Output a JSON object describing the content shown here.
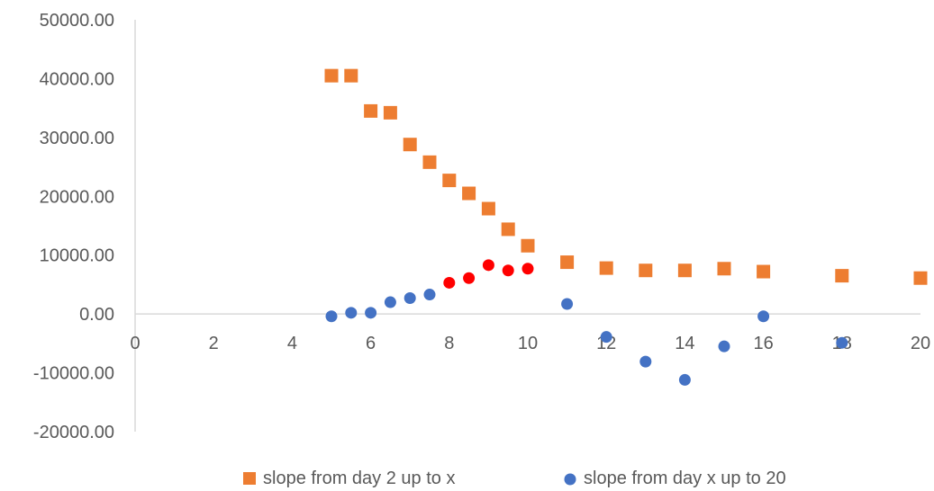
{
  "chart_data": {
    "type": "scatter",
    "title": "",
    "xlabel": "",
    "ylabel": "",
    "xlim": [
      0,
      20
    ],
    "ylim": [
      -20000,
      50000
    ],
    "x_ticks": [
      0,
      2,
      4,
      6,
      8,
      10,
      12,
      14,
      16,
      18,
      20
    ],
    "y_ticks": [
      50000,
      40000,
      30000,
      20000,
      10000,
      0,
      -10000,
      -20000
    ],
    "x_tick_labels": [
      "0",
      "2",
      "4",
      "6",
      "8",
      "10",
      "12",
      "14",
      "16",
      "18",
      "20"
    ],
    "y_tick_labels": [
      "50000.00",
      "40000.00",
      "30000.00",
      "20000.00",
      "10000.00",
      "0.00",
      "-10000.00",
      "-20000.00"
    ],
    "grid": false,
    "legend_position": "bottom",
    "series": [
      {
        "name": "slope from day 2 up to x",
        "marker": "square",
        "color": "#ED7D31",
        "points": [
          {
            "x": 5,
            "y": 40500
          },
          {
            "x": 5.5,
            "y": 40500
          },
          {
            "x": 6,
            "y": 34500
          },
          {
            "x": 6.5,
            "y": 34200
          },
          {
            "x": 7,
            "y": 28800
          },
          {
            "x": 7.5,
            "y": 25800
          },
          {
            "x": 8,
            "y": 22700
          },
          {
            "x": 8.5,
            "y": 20500
          },
          {
            "x": 9,
            "y": 17900
          },
          {
            "x": 9.5,
            "y": 14400
          },
          {
            "x": 10,
            "y": 11600
          },
          {
            "x": 11,
            "y": 8800
          },
          {
            "x": 12,
            "y": 7800
          },
          {
            "x": 13,
            "y": 7400
          },
          {
            "x": 14,
            "y": 7400
          },
          {
            "x": 15,
            "y": 7700
          },
          {
            "x": 16,
            "y": 7200
          },
          {
            "x": 18,
            "y": 6500
          },
          {
            "x": 20,
            "y": 6100
          }
        ]
      },
      {
        "name": "slope from day x up to 20",
        "marker": "circle",
        "color": "#4472C4",
        "highlight_color": "#FF0000",
        "points": [
          {
            "x": 5,
            "y": -400
          },
          {
            "x": 5.5,
            "y": 200
          },
          {
            "x": 6,
            "y": 200
          },
          {
            "x": 6.5,
            "y": 2000
          },
          {
            "x": 7,
            "y": 2700
          },
          {
            "x": 7.5,
            "y": 3300
          },
          {
            "x": 8,
            "y": 5300,
            "highlight": true
          },
          {
            "x": 8.5,
            "y": 6100,
            "highlight": true
          },
          {
            "x": 9,
            "y": 8300,
            "highlight": true
          },
          {
            "x": 9.5,
            "y": 7400,
            "highlight": true
          },
          {
            "x": 10,
            "y": 7700,
            "highlight": true
          },
          {
            "x": 11,
            "y": 1700
          },
          {
            "x": 12,
            "y": -3900
          },
          {
            "x": 13,
            "y": -8100
          },
          {
            "x": 14,
            "y": -11200
          },
          {
            "x": 15,
            "y": -5500
          },
          {
            "x": 16,
            "y": -400
          },
          {
            "x": 18,
            "y": -4900
          }
        ]
      }
    ]
  }
}
